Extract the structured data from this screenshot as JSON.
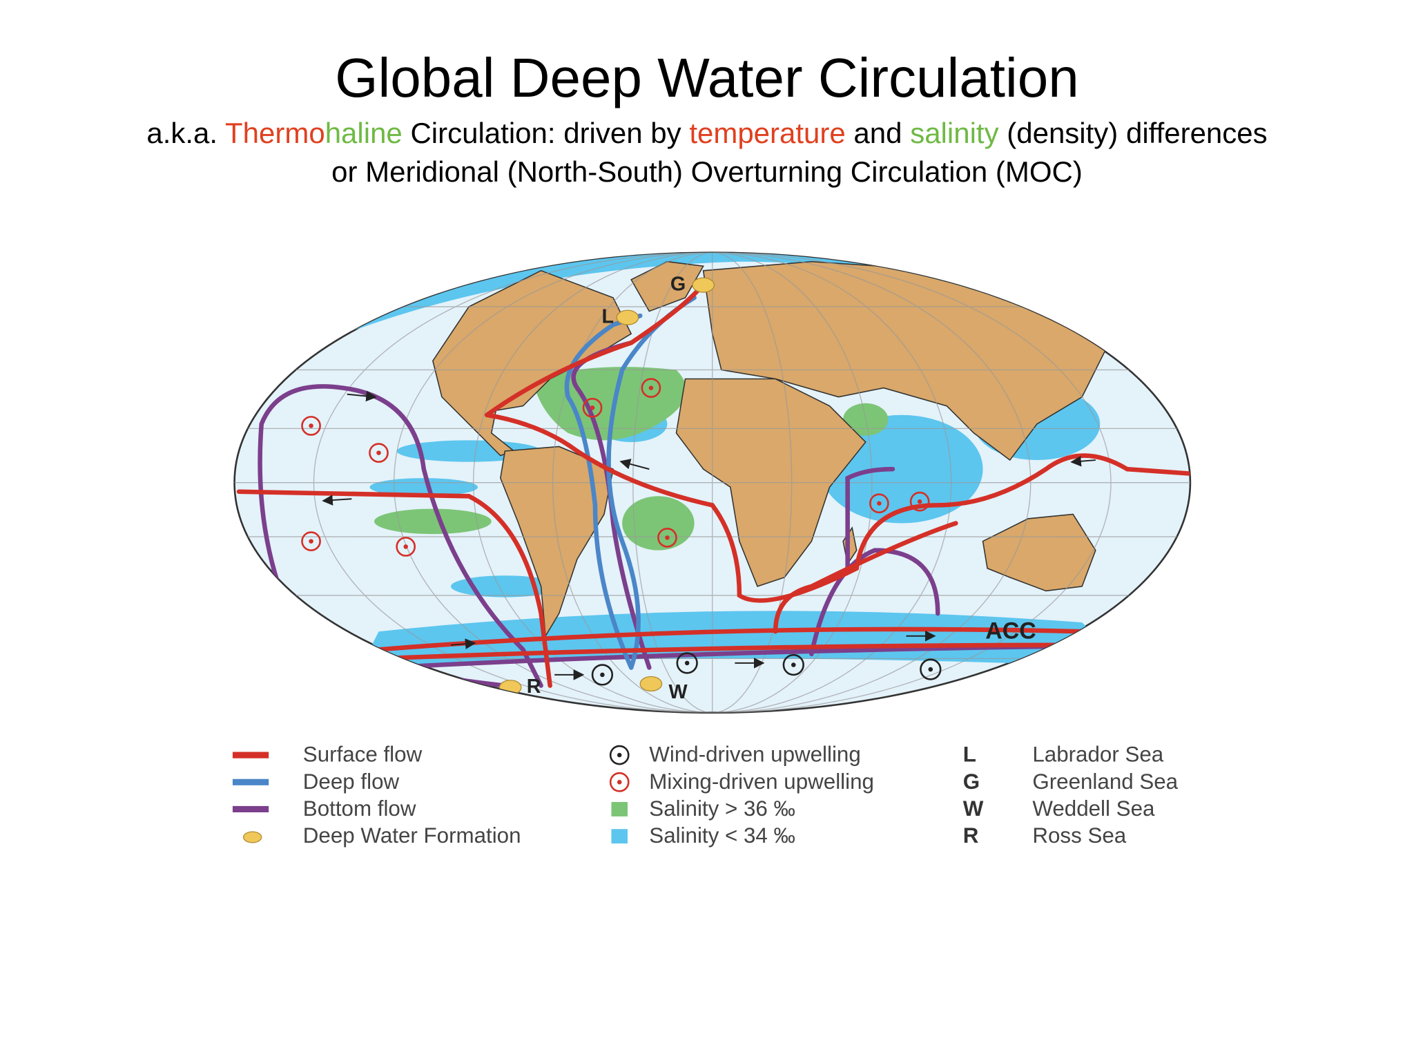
{
  "title": "Global Deep Water Circulation",
  "subtitle": {
    "line1": [
      {
        "text": "a.k.a. "
      },
      {
        "text": "Thermo",
        "color": "#e0401f"
      },
      {
        "text": "haline",
        "color": "#6fb944"
      },
      {
        "text": " Circulation: driven by "
      },
      {
        "text": "temperature",
        "color": "#e0401f"
      },
      {
        "text": " and "
      },
      {
        "text": "salinity",
        "color": "#6fb944"
      },
      {
        "text": " (density) differences"
      }
    ],
    "line2": "or Meridional (North-South) Overturning Circulation (MOC)"
  },
  "map": {
    "labels": [
      "G",
      "L",
      "R",
      "W",
      "ACC"
    ]
  },
  "legend": {
    "flows": [
      "Surface flow",
      "Deep flow",
      "Bottom flow",
      "Deep Water Formation"
    ],
    "features": [
      "Wind-driven upwelling",
      "Mixing-driven upwelling",
      "Salinity > 36 ‰",
      "Salinity < 34 ‰"
    ],
    "seas": [
      {
        "key": "L",
        "text": "Labrador Sea"
      },
      {
        "key": "G",
        "text": "Greenland Sea"
      },
      {
        "key": "W",
        "text": "Weddell Sea"
      },
      {
        "key": "R",
        "text": "Ross Sea"
      }
    ]
  }
}
